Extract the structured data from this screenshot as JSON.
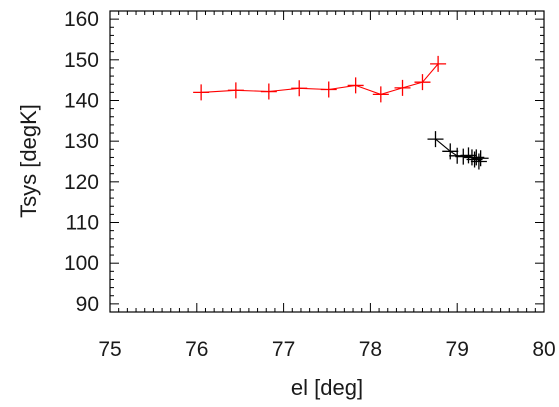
{
  "chart_data": {
    "type": "line",
    "title": "",
    "xlabel": "el [deg]",
    "ylabel": "Tsys [degK]",
    "xlim": [
      75,
      80
    ],
    "ylim": [
      88,
      162
    ],
    "xticks": [
      "75",
      "76",
      "77",
      "78",
      "79",
      "80"
    ],
    "yticks": [
      "90",
      "100",
      "110",
      "120",
      "130",
      "140",
      "150",
      "160"
    ],
    "grid": false,
    "legend": "none",
    "marker": "plus",
    "series": [
      {
        "color": "#ff0000",
        "x": [
          76.05,
          76.45,
          76.83,
          77.18,
          77.52,
          77.83,
          78.12,
          78.37,
          78.6,
          78.78
        ],
        "y": [
          142.0,
          142.5,
          142.2,
          143.0,
          142.7,
          143.7,
          141.5,
          143.1,
          144.5,
          149.0
        ]
      },
      {
        "color": "#000000",
        "x": [
          78.75,
          78.92,
          79.0,
          79.07,
          79.13,
          79.17,
          79.2,
          79.22,
          79.25,
          79.27
        ],
        "y": [
          130.5,
          127.5,
          126.4,
          126.2,
          126.5,
          126.0,
          125.5,
          126.0,
          125.0,
          125.8
        ]
      }
    ]
  }
}
